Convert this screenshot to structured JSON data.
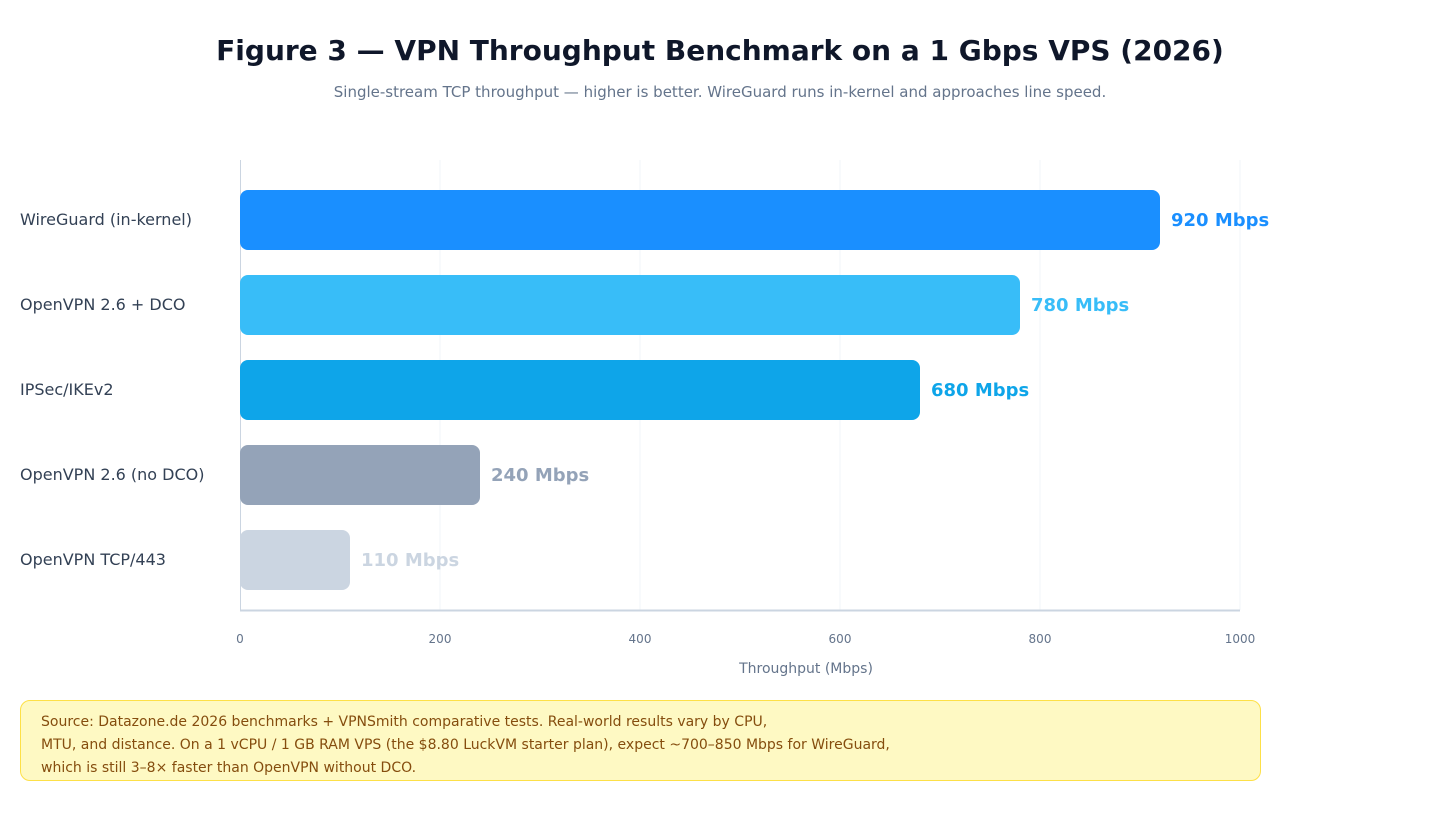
{
  "title": "Figure 3 — VPN Throughput Benchmark on a 1 Gbps VPS (2026)",
  "subtitle": "Single-stream TCP throughput — higher is better. WireGuard runs in-kernel and approaches line speed.",
  "chart_data": {
    "type": "bar",
    "orientation": "horizontal",
    "categories": [
      "WireGuard (in-kernel)",
      "OpenVPN 2.6 + DCO",
      "IPSec/IKEv2",
      "OpenVPN 2.6 (no DCO)",
      "OpenVPN TCP/443"
    ],
    "values": [
      920,
      780,
      680,
      240,
      110
    ],
    "value_labels": [
      "920 Mbps",
      "780 Mbps",
      "680 Mbps",
      "240 Mbps",
      "110 Mbps"
    ],
    "colors": [
      "#1a8fff",
      "#38bdf8",
      "#0ea5e9",
      "#94a3b8",
      "#cbd5e1"
    ],
    "xlabel": "Throughput (Mbps)",
    "ylabel": "",
    "xlim": [
      0,
      1000
    ],
    "x_ticks": [
      0,
      200,
      400,
      600,
      800,
      1000
    ],
    "grid": true
  },
  "note": {
    "lines": [
      "Source: Datazone.de 2026 benchmarks + VPNSmith comparative tests. Real-world results vary by CPU,",
      "MTU, and distance. On a 1 vCPU / 1 GB RAM VPS (the $8.80 LuckVM starter plan), expect ~700–850 Mbps for WireGuard,",
      "which is still 3–8× faster than OpenVPN without DCO."
    ]
  }
}
